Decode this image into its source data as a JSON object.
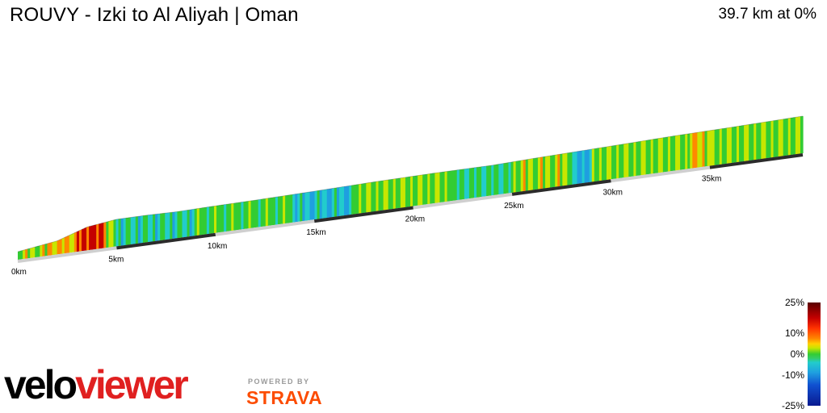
{
  "header": {
    "title": "ROUVY - Izki to Al Aliyah | Oman",
    "summary": "39.7 km at 0%"
  },
  "chart_data": {
    "type": "area",
    "title": "ROUVY - Izki to Al Aliyah | Oman",
    "x_unit": "km",
    "xlim": [
      0,
      39.7
    ],
    "x_ticks": [
      "0km",
      "5km",
      "10km",
      "15km",
      "20km",
      "25km",
      "30km",
      "35km"
    ],
    "x_tick_values": [
      0,
      5,
      10,
      15,
      20,
      25,
      30,
      35
    ],
    "distance": [
      0,
      2,
      3.5,
      5,
      6.5,
      8,
      10,
      12,
      15,
      18,
      21,
      24,
      26,
      28,
      30,
      33,
      36,
      39.7
    ],
    "relative_elevation": [
      0,
      0.18,
      0.5,
      0.62,
      0.62,
      0.6,
      0.62,
      0.63,
      0.66,
      0.7,
      0.72,
      0.72,
      0.76,
      0.79,
      0.82,
      0.87,
      0.9,
      0.95
    ],
    "gradient_segments": [
      {
        "from": 0,
        "to": 1.5,
        "grade": 2
      },
      {
        "from": 1.5,
        "to": 3,
        "grade": 4
      },
      {
        "from": 3,
        "to": 4.5,
        "grade": 8
      },
      {
        "from": 4.5,
        "to": 5,
        "grade": 1
      },
      {
        "from": 5,
        "to": 9,
        "grade": -2
      },
      {
        "from": 9,
        "to": 14,
        "grade": 0
      },
      {
        "from": 14,
        "to": 17,
        "grade": -3
      },
      {
        "from": 17,
        "to": 22,
        "grade": 1
      },
      {
        "from": 22,
        "to": 25,
        "grade": -1
      },
      {
        "from": 25,
        "to": 28,
        "grade": 2
      },
      {
        "from": 28,
        "to": 29,
        "grade": -4
      },
      {
        "from": 29,
        "to": 34,
        "grade": 1
      },
      {
        "from": 34,
        "to": 35,
        "grade": 3
      },
      {
        "from": 35,
        "to": 39.7,
        "grade": 1
      }
    ],
    "legend": {
      "labels": [
        "25%",
        "10%",
        "0%",
        "-10%",
        "-25%"
      ],
      "values": [
        25,
        10,
        0,
        -10,
        -25
      ],
      "placement": "bottom-right"
    },
    "colors": {
      "steep_up": "#c40000",
      "up": "#ff8800",
      "mild_up": "#c8e600",
      "flat": "#33cc33",
      "mild_down": "#22cccc",
      "down": "#1f9fe0",
      "steep_down": "#0a1a90"
    }
  },
  "branding": {
    "logo_part1": "velo",
    "logo_part2": "viewer",
    "powered_by": "POWERED BY",
    "strava": "STRAVA"
  }
}
